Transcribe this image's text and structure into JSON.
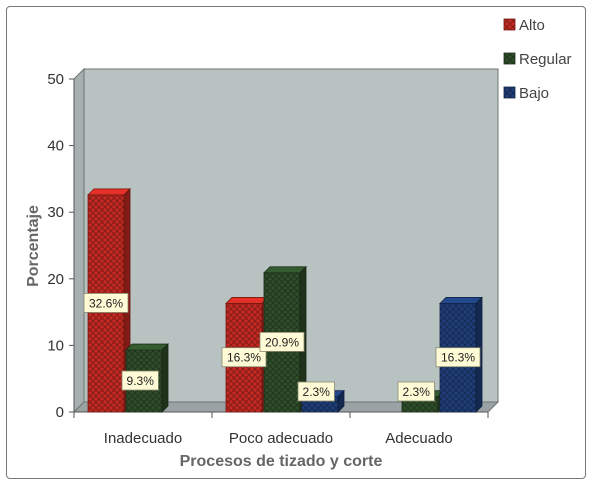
{
  "chart_data": {
    "type": "bar",
    "title": "",
    "xlabel": "Procesos de tizado y corte",
    "ylabel": "Porcentaje",
    "ylim": [
      0,
      50
    ],
    "yticks": [
      0,
      10,
      20,
      30,
      40,
      50
    ],
    "categories": [
      "Inadecuado",
      "Poco adecuado",
      "Adecuado"
    ],
    "series": [
      {
        "name": "Alto",
        "values": [
          32.6,
          16.3,
          0
        ],
        "labels": [
          "32.6%",
          "16.3%",
          ""
        ],
        "color": "#c62a22"
      },
      {
        "name": "Regular",
        "values": [
          9.3,
          20.9,
          2.3
        ],
        "labels": [
          "9.3%",
          "20.9%",
          "2.3%"
        ],
        "color": "#2f4f2a"
      },
      {
        "name": "Bajo",
        "values": [
          0,
          2.3,
          16.3
        ],
        "labels": [
          "",
          "2.3%",
          "16.3%"
        ],
        "color": "#1f3f7a"
      }
    ],
    "grid": false,
    "legend_position": "top-right",
    "colors": {
      "plot_wall": "#b8c2c1",
      "floor": "#9aa3a3",
      "label_box": "#fffbd6"
    }
  }
}
